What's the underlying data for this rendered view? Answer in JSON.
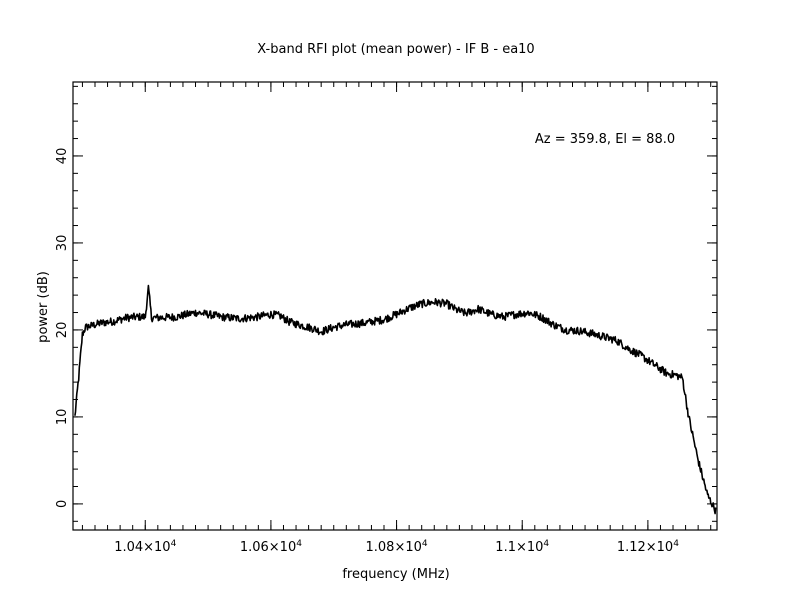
{
  "chart_data": {
    "type": "line",
    "title": "X-band RFI plot (mean power) - IF B - ea10",
    "xlabel": "frequency (MHz)",
    "ylabel": "power (dB)",
    "annotation": "Az = 359.8, El = 88.0",
    "xlim": [
      10285,
      11310
    ],
    "ylim": [
      -3,
      48.5
    ],
    "x_ticks": [
      {
        "value": 10400,
        "mantissa": "1.04",
        "exponent": "4"
      },
      {
        "value": 10600,
        "mantissa": "1.06",
        "exponent": "4"
      },
      {
        "value": 10800,
        "mantissa": "1.08",
        "exponent": "4"
      },
      {
        "value": 11000,
        "mantissa": "1.1",
        "exponent": "4"
      },
      {
        "value": 11200,
        "mantissa": "1.12",
        "exponent": "4"
      }
    ],
    "x_minor_step": 20,
    "y_ticks": [
      0,
      10,
      20,
      30,
      40
    ],
    "y_minor_step": 2,
    "grid": false,
    "series": [
      {
        "x": [
          10288,
          10294,
          10300,
          10305,
          10310,
          10330,
          10350,
          10370,
          10390,
          10400,
          10405,
          10410,
          10420,
          10450,
          10480,
          10500,
          10520,
          10550,
          10580,
          10600,
          10615,
          10630,
          10650,
          10660,
          10670,
          10680,
          10700,
          10720,
          10750,
          10780,
          10800,
          10820,
          10840,
          10860,
          10880,
          10895,
          10910,
          10930,
          10950,
          10970,
          10990,
          11010,
          11030,
          11050,
          11070,
          11090,
          11110,
          11130,
          11150,
          11170,
          11190,
          11210,
          11230,
          11245,
          11255,
          11265,
          11280,
          11295,
          11308
        ],
        "y": [
          10.0,
          14.5,
          19.5,
          20.3,
          20.4,
          20.8,
          21.0,
          21.4,
          21.5,
          21.5,
          24.8,
          21.4,
          21.4,
          21.5,
          22.0,
          21.8,
          21.5,
          21.3,
          21.5,
          21.8,
          21.6,
          20.9,
          20.5,
          20.3,
          20.1,
          19.8,
          20.3,
          20.6,
          20.8,
          21.2,
          21.8,
          22.5,
          23.0,
          23.2,
          23.0,
          22.3,
          21.9,
          22.4,
          21.8,
          21.5,
          21.8,
          22.0,
          21.5,
          20.6,
          20.0,
          19.9,
          19.6,
          19.2,
          18.8,
          17.8,
          17.0,
          16.0,
          15.0,
          14.8,
          14.5,
          10.0,
          5.0,
          1.0,
          -0.8
        ]
      }
    ]
  }
}
